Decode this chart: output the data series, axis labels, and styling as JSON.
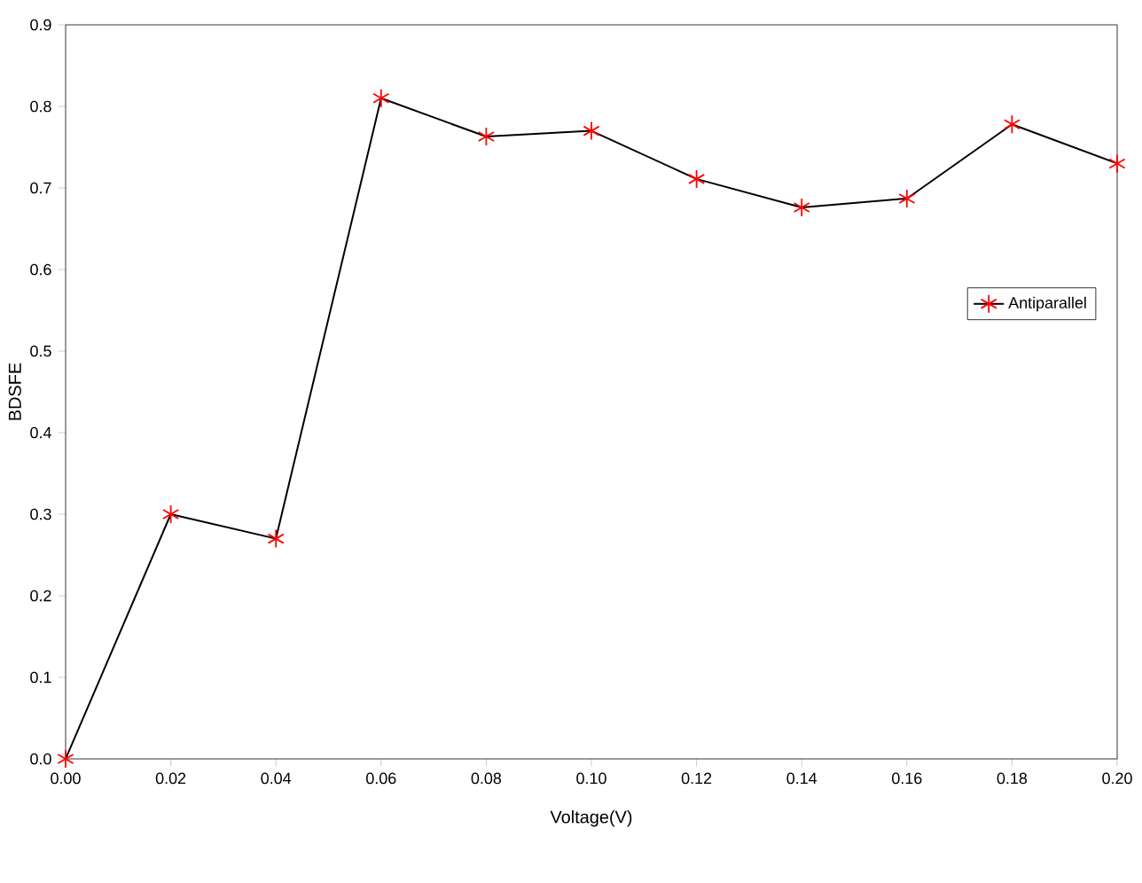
{
  "chart_data": {
    "type": "line",
    "xlabel": "Voltage(V)",
    "ylabel": "BDSFE",
    "x": [
      0.0,
      0.02,
      0.04,
      0.06,
      0.08,
      0.1,
      0.12,
      0.14,
      0.16,
      0.18,
      0.2
    ],
    "series": [
      {
        "name": "Antiparallel",
        "color": "#ff0000",
        "values": [
          0.0,
          0.3,
          0.27,
          0.81,
          0.763,
          0.77,
          0.711,
          0.676,
          0.687,
          0.778,
          0.73
        ]
      }
    ],
    "xlim": [
      0.0,
      0.2
    ],
    "xticks": [
      {
        "value": 0.0,
        "label": "0.00"
      },
      {
        "value": 0.02,
        "label": "0.02"
      },
      {
        "value": 0.04,
        "label": "0.04"
      },
      {
        "value": 0.06,
        "label": "0.06"
      },
      {
        "value": 0.08,
        "label": "0.08"
      },
      {
        "value": 0.1,
        "label": "0.10"
      },
      {
        "value": 0.12,
        "label": "0.12"
      },
      {
        "value": 0.14,
        "label": "0.14"
      },
      {
        "value": 0.16,
        "label": "0.16"
      },
      {
        "value": 0.18,
        "label": "0.18"
      },
      {
        "value": 0.2,
        "label": "0.20"
      }
    ],
    "ylim": [
      0.0,
      0.9
    ],
    "yticks": [
      {
        "value": 0.0,
        "label": "0.0"
      },
      {
        "value": 0.1,
        "label": "0.1"
      },
      {
        "value": 0.2,
        "label": "0.2"
      },
      {
        "value": 0.3,
        "label": "0.3"
      },
      {
        "value": 0.4,
        "label": "0.4"
      },
      {
        "value": 0.5,
        "label": "0.5"
      },
      {
        "value": 0.6,
        "label": "0.6"
      },
      {
        "value": 0.7,
        "label": "0.7"
      },
      {
        "value": 0.8,
        "label": "0.8"
      },
      {
        "value": 0.9,
        "label": "0.9"
      }
    ],
    "legend": "right",
    "marker": "cross",
    "line_style": "solid"
  }
}
